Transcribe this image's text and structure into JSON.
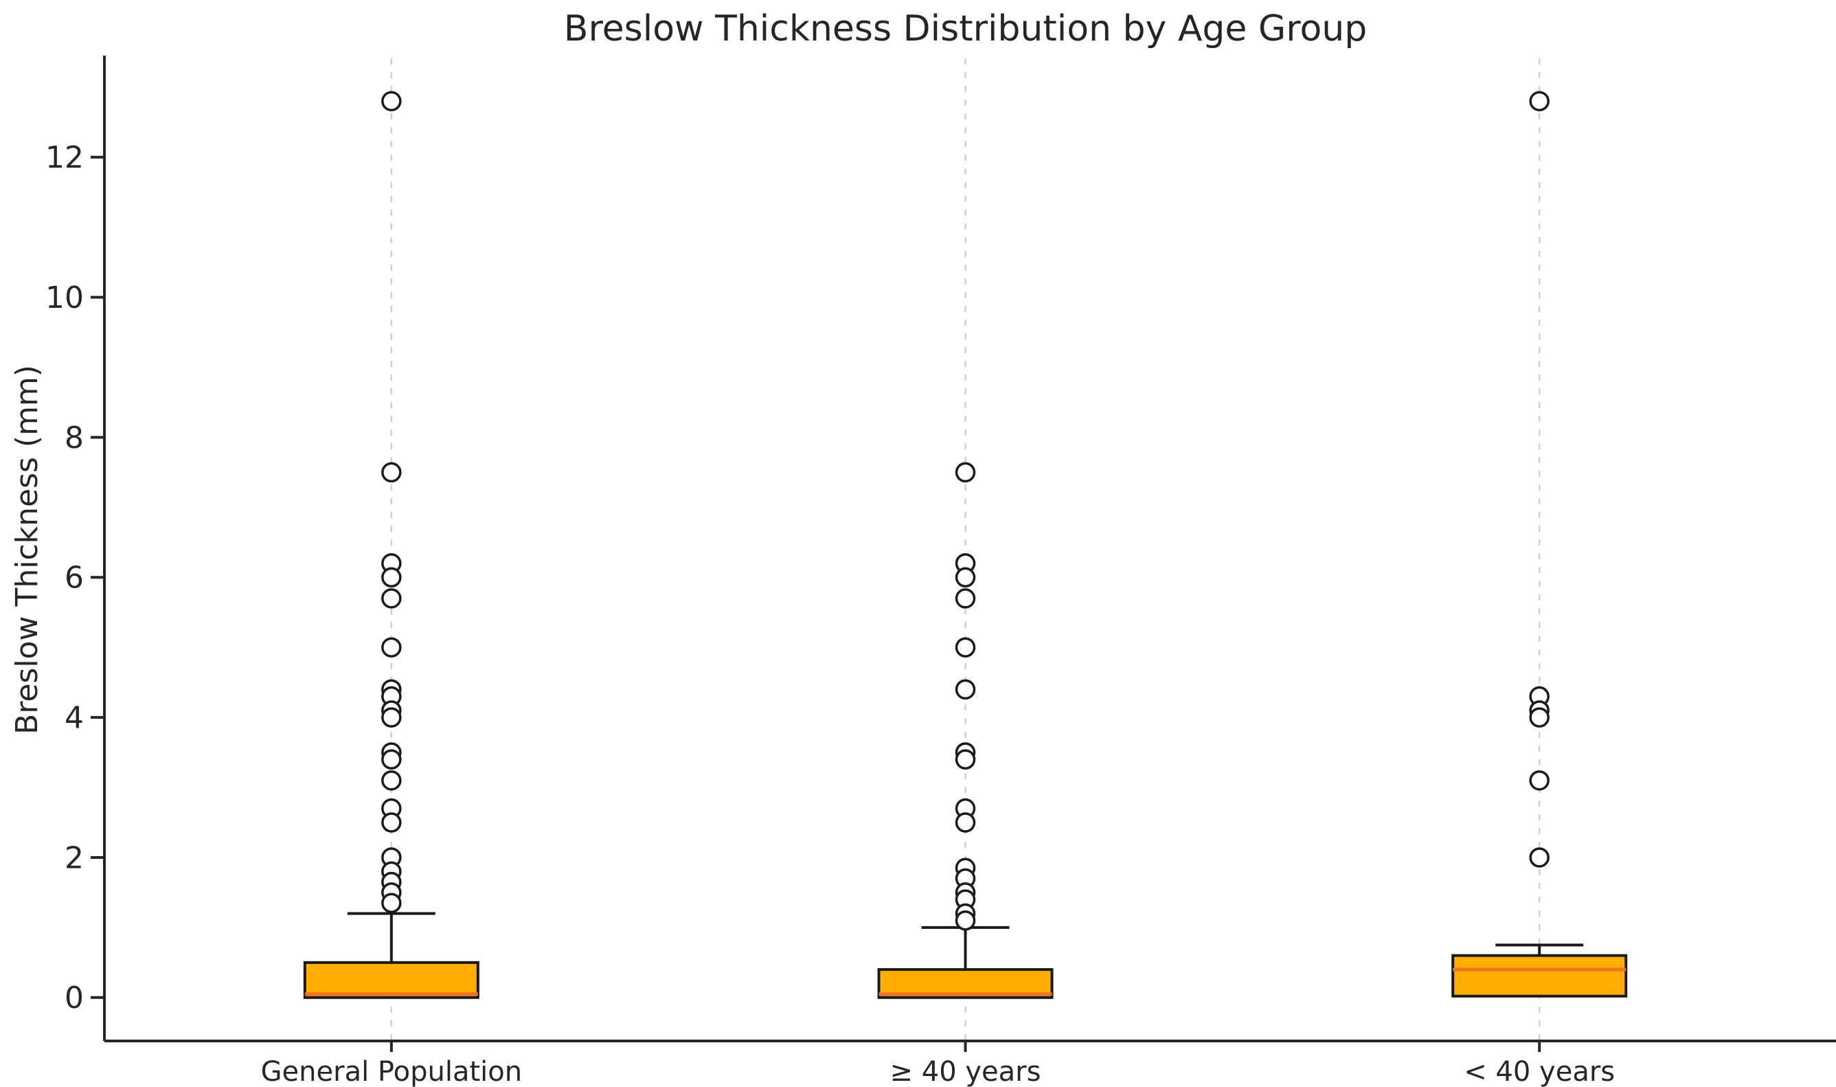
{
  "title": "Breslow Thickness Distribution by Age Group",
  "chart_data": {
    "type": "boxplot",
    "title": "Breslow Thickness Distribution by Age Group",
    "xlabel": "",
    "ylabel": "Breslow Thickness (mm)",
    "categories": [
      "General Population",
      "≥ 40 years",
      "< 40 years"
    ],
    "yticks": [
      0,
      2,
      4,
      6,
      8,
      10,
      12
    ],
    "ylim": [
      -0.62,
      13.45
    ],
    "grid": "vertical dashed gridline at each category center",
    "legend": "none",
    "series": [
      {
        "label": "General Population",
        "whisker_low": 0.0,
        "q1": 0.0,
        "median": 0.05,
        "q3": 0.5,
        "whisker_high": 1.2,
        "outliers": [
          12.8,
          7.5,
          6.2,
          6.0,
          5.7,
          5.0,
          4.4,
          4.3,
          4.1,
          4.0,
          3.5,
          3.4,
          3.1,
          2.7,
          2.5,
          2.0,
          1.8,
          1.65,
          1.5,
          1.35
        ]
      },
      {
        "label": "≥ 40 years",
        "whisker_low": 0.0,
        "q1": 0.0,
        "median": 0.05,
        "q3": 0.4,
        "whisker_high": 1.0,
        "outliers": [
          7.5,
          6.2,
          6.0,
          5.7,
          5.0,
          4.4,
          3.5,
          3.4,
          2.7,
          2.5,
          1.85,
          1.7,
          1.5,
          1.4,
          1.2,
          1.1
        ]
      },
      {
        "label": "< 40 years",
        "whisker_low": 0.02,
        "q1": 0.02,
        "median": 0.4,
        "q3": 0.6,
        "whisker_high": 0.75,
        "outliers": [
          12.8,
          4.3,
          4.1,
          4.0,
          3.1,
          2.0
        ]
      }
    ],
    "colors": {
      "box_fill": "#FFAD00",
      "box_edge": "#1a1a1a",
      "median_line": "#F07022",
      "whisker": "#1a1a1a",
      "outlier_edge": "#1a1a1a",
      "gridline": "#cfcfcf",
      "axis": "#262626",
      "text": "#262626"
    }
  }
}
